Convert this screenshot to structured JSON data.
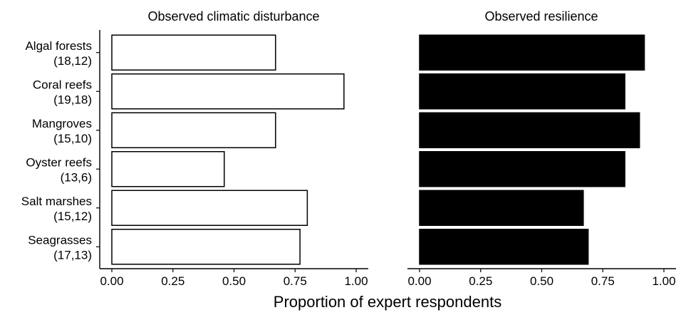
{
  "chart_data": [
    {
      "type": "bar",
      "orientation": "horizontal",
      "title": "Observed climatic disturbance",
      "categories": [
        "Algal forests",
        "Coral reefs",
        "Mangroves",
        "Oyster reefs",
        "Salt marshes",
        "Seagrasses"
      ],
      "category_counts": [
        "(18,12)",
        "(19,18)",
        "(15,10)",
        "(13,6)",
        "(15,12)",
        "(17,13)"
      ],
      "values": [
        0.67,
        0.95,
        0.67,
        0.46,
        0.8,
        0.77
      ],
      "bar_color": "#ffffff",
      "bar_edge_color": "#000000",
      "xlim": [
        0,
        1
      ],
      "xticks": [
        "0.00",
        "0.25",
        "0.50",
        "0.75",
        "1.00"
      ],
      "grid": false
    },
    {
      "type": "bar",
      "orientation": "horizontal",
      "title": "Observed resilience",
      "categories": [
        "Algal forests",
        "Coral reefs",
        "Mangroves",
        "Oyster reefs",
        "Salt marshes",
        "Seagrasses"
      ],
      "values": [
        0.92,
        0.84,
        0.9,
        0.84,
        0.67,
        0.69
      ],
      "bar_color": "#000000",
      "bar_edge_color": "#000000",
      "xlim": [
        0,
        1
      ],
      "xticks": [
        "0.00",
        "0.25",
        "0.50",
        "0.75",
        "1.00"
      ],
      "grid": false
    }
  ],
  "xlabel": "Proportion of expert respondents"
}
